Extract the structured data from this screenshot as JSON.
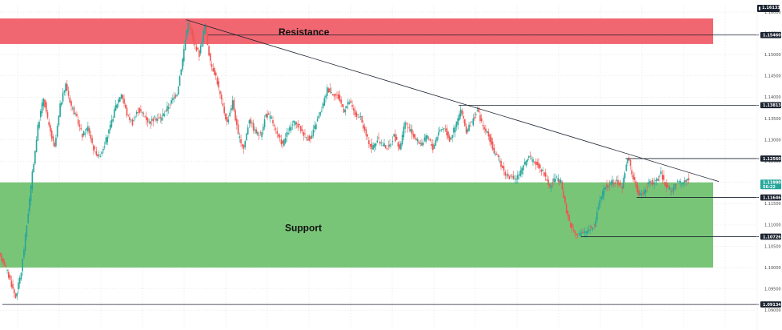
{
  "chart_data": {
    "type": "candlestick",
    "ylim": [
      1.0891,
      1.16133
    ],
    "y_ticks": [
      "1.16000",
      "1.15500",
      "1.15000",
      "1.14500",
      "1.14000",
      "1.13500",
      "1.13000",
      "1.12500",
      "1.12000",
      "1.11500",
      "1.11000",
      "1.10500",
      "1.10000",
      "1.09500",
      "1.09000"
    ],
    "zones": [
      {
        "label": "Resistance",
        "from": 1.1525,
        "to": 1.1585,
        "color": "#f05762"
      },
      {
        "label": "Support",
        "from": 1.1,
        "to": 1.12,
        "color": "#6abf69"
      }
    ],
    "trendline": {
      "from": {
        "bar": 33,
        "price": 1.1582
      },
      "to": {
        "bar": 127,
        "price": 1.1202
      }
    },
    "levels": [
      {
        "price": 1.1546,
        "label": "1.15460",
        "from_bar": 37
      },
      {
        "price": 1.13813,
        "label": "1.13813",
        "from_bar": 82
      },
      {
        "price": 1.1256,
        "label": "1.12560",
        "from_bar": 112
      },
      {
        "price": 1.11646,
        "label": "1.11646",
        "from_bar": 114
      },
      {
        "price": 1.10726,
        "label": "1.10726",
        "from_bar": 104
      },
      {
        "price": 1.09134,
        "label": "1.09134",
        "from_bar": 0
      }
    ],
    "last_price": {
      "price": 1.1199,
      "label": "1.11990",
      "countdown": "56:22",
      "color": "#26a69a"
    },
    "top_label": "1.16133",
    "up_color": "#26a69a",
    "down_color": "#ef5350",
    "line_color": "#1b2330",
    "close_path": [
      1.101,
      1.097,
      1.093,
      1.099,
      1.11,
      1.122,
      1.133,
      1.14,
      1.133,
      1.128,
      1.138,
      1.143,
      1.138,
      1.135,
      1.131,
      1.133,
      1.128,
      1.126,
      1.129,
      1.133,
      1.138,
      1.141,
      1.136,
      1.134,
      1.137,
      1.136,
      1.134,
      1.135,
      1.135,
      1.137,
      1.139,
      1.141,
      1.149,
      1.158,
      1.153,
      1.15,
      1.157,
      1.148,
      1.145,
      1.139,
      1.134,
      1.139,
      1.131,
      1.128,
      1.135,
      1.132,
      1.131,
      1.136,
      1.135,
      1.131,
      1.129,
      1.132,
      1.134,
      1.133,
      1.131,
      1.13,
      1.134,
      1.137,
      1.142,
      1.141,
      1.14,
      1.137,
      1.139,
      1.136,
      1.135,
      1.131,
      1.128,
      1.13,
      1.129,
      1.128,
      1.131,
      1.128,
      1.134,
      1.132,
      1.13,
      1.129,
      1.131,
      1.128,
      1.132,
      1.133,
      1.13,
      1.133,
      1.137,
      1.132,
      1.134,
      1.137,
      1.133,
      1.131,
      1.127,
      1.125,
      1.122,
      1.121,
      1.121,
      1.123,
      1.126,
      1.125,
      1.124,
      1.122,
      1.119,
      1.121,
      1.12,
      1.113,
      1.109,
      1.108,
      1.108,
      1.109,
      1.11,
      1.116,
      1.119,
      1.12,
      1.12,
      1.119,
      1.126,
      1.121,
      1.117,
      1.118,
      1.12,
      1.12,
      1.122,
      1.119,
      1.118,
      1.12,
      1.12,
      1.121
    ]
  }
}
